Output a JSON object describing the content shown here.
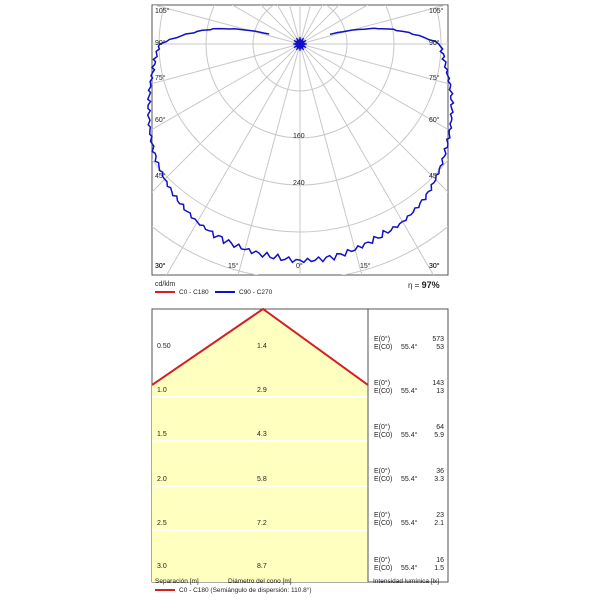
{
  "polar": {
    "angle_labels_left": [
      "105°",
      "90°",
      "75°",
      "60°",
      "45°",
      "30°"
    ],
    "angle_labels_right": [
      "105°",
      "90°",
      "75°",
      "60°",
      "45°",
      "30°"
    ],
    "bottom_labels": [
      "30°",
      "15°",
      "0°",
      "15°",
      "30°"
    ],
    "radial_labels": [
      "160",
      "240"
    ],
    "unit": "cd/klm",
    "efficiency_label": "η =",
    "efficiency_value": "97%",
    "legend": [
      {
        "name": "C0 - C180",
        "color": "#d42020"
      },
      {
        "name": "C90 - C270",
        "color": "#1010c8"
      }
    ]
  },
  "cone": {
    "rows": [
      {
        "sep": "0.50",
        "diam": "1.4",
        "e0_label": "E(0°)",
        "e0": "573",
        "ec_label": "E(C0)",
        "ec_angle": "55.4°",
        "ec": "53"
      },
      {
        "sep": "1.0",
        "diam": "2.9",
        "e0_label": "E(0°)",
        "e0": "143",
        "ec_label": "E(C0)",
        "ec_angle": "55.4°",
        "ec": "13"
      },
      {
        "sep": "1.5",
        "diam": "4.3",
        "e0_label": "E(0°)",
        "e0": "64",
        "ec_label": "E(C0)",
        "ec_angle": "55.4°",
        "ec": "5.9"
      },
      {
        "sep": "2.0",
        "diam": "5.8",
        "e0_label": "E(0°)",
        "e0": "36",
        "ec_label": "E(C0)",
        "ec_angle": "55.4°",
        "ec": "3.3"
      },
      {
        "sep": "2.5",
        "diam": "7.2",
        "e0_label": "E(0°)",
        "e0": "23",
        "ec_label": "E(C0)",
        "ec_angle": "55.4°",
        "ec": "2.1"
      },
      {
        "sep": "3.0",
        "diam": "8.7",
        "e0_label": "E(0°)",
        "e0": "16",
        "ec_label": "E(C0)",
        "ec_angle": "55.4°",
        "ec": "1.5"
      }
    ],
    "footer_sep": "Separación [m]",
    "footer_diam": "Diámetro del cono [m]",
    "footer_int": "Intensidad lumínica [lx]",
    "legend_text": "C0 - C180 (Semiángulo de dispersión: 110.8°)",
    "legend_color": "#d42020",
    "fill_color": "#ffffc0"
  },
  "chart_data": [
    {
      "type": "line",
      "subtype": "polar",
      "unit": "cd/klm",
      "efficiency": "97%",
      "series": [
        {
          "name": "C0 - C180",
          "color": "#d42020",
          "values": []
        },
        {
          "name": "C90 - C270",
          "color": "#1010c8",
          "angles_deg": [
            0,
            10,
            20,
            30,
            40,
            50,
            60,
            70,
            80,
            90,
            100,
            110
          ],
          "values": [
            248,
            245,
            240,
            235,
            225,
            212,
            198,
            184,
            170,
            160,
            100,
            20
          ]
        }
      ],
      "radial_ticks": [
        160,
        240
      ],
      "grid": true
    },
    {
      "type": "table",
      "columns": [
        "Separación [m]",
        "Diámetro del cono [m]",
        "E(0°)",
        "E(C0) 55.4°"
      ],
      "rows": [
        [
          "0.50",
          "1.4",
          573,
          53
        ],
        [
          "1.0",
          "2.9",
          143,
          13
        ],
        [
          "1.5",
          "4.3",
          64,
          5.9
        ],
        [
          "2.0",
          "5.8",
          36,
          3.3
        ],
        [
          "2.5",
          "7.2",
          23,
          2.1
        ],
        [
          "3.0",
          "8.7",
          16,
          1.5
        ]
      ],
      "half_angle": "110.8°"
    }
  ]
}
